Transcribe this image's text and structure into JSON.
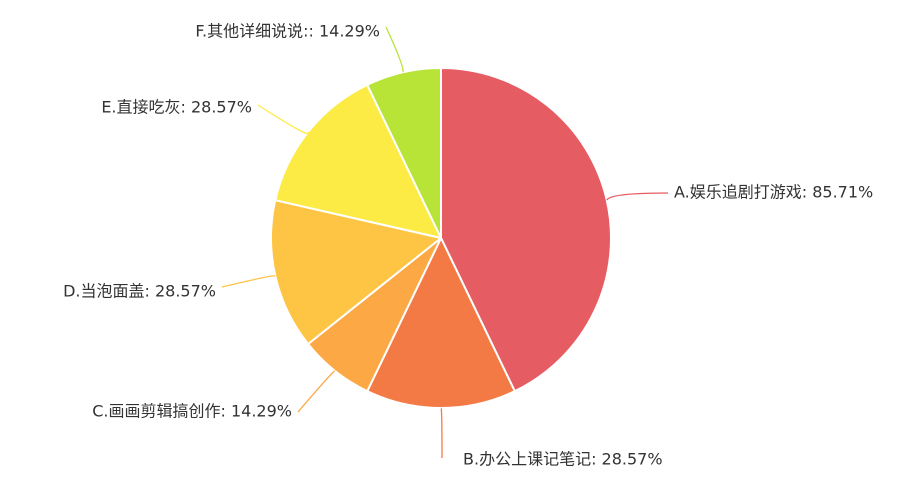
{
  "chart_data": {
    "type": "pie",
    "start_angle": "12 o'clock",
    "direction": "clockwise",
    "slices": [
      {
        "label": "A.娱乐追剧打游戏: 85.71%",
        "value": 85.71,
        "color": "#e65c63"
      },
      {
        "label": "B.办公上课记笔记: 28.57%",
        "value": 28.57,
        "color": "#f47a45"
      },
      {
        "label": "C.画画剪辑搞创作: 14.29%",
        "value": 14.29,
        "color": "#fba845"
      },
      {
        "label": "D.当泡面盖: 28.57%",
        "value": 28.57,
        "color": "#fec444"
      },
      {
        "label": "E.直接吃灰: 28.57%",
        "value": 28.57,
        "color": "#fdeb45"
      },
      {
        "label": "F.其他详细说说:: 14.29%",
        "value": 14.29,
        "color": "#b8e437"
      }
    ]
  }
}
